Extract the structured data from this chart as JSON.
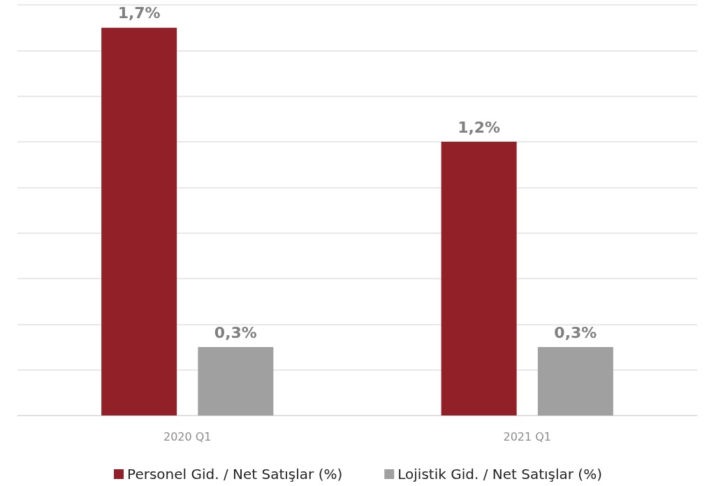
{
  "chart_data": {
    "type": "bar",
    "categories": [
      "2020 Q1",
      "2021 Q1"
    ],
    "series": [
      {
        "name": "Personel Gid. / Net Satışlar (%)",
        "color": "#922029",
        "values": [
          1.7,
          1.2
        ],
        "value_labels": [
          "1,7%",
          "1,2%"
        ]
      },
      {
        "name": "Lojistik Gid. / Net Satışlar (%)",
        "color": "#a0a0a0",
        "values": [
          0.3,
          0.3
        ],
        "value_labels": [
          "0,3%",
          "0,3%"
        ]
      }
    ],
    "ylim": [
      0,
      1.8
    ],
    "yticks": [
      0,
      0.2,
      0.4,
      0.6,
      0.8,
      1,
      1.2,
      1.4,
      1.6,
      1.8
    ],
    "grid": "y",
    "tick_labels": "x",
    "legend": "bottom"
  }
}
